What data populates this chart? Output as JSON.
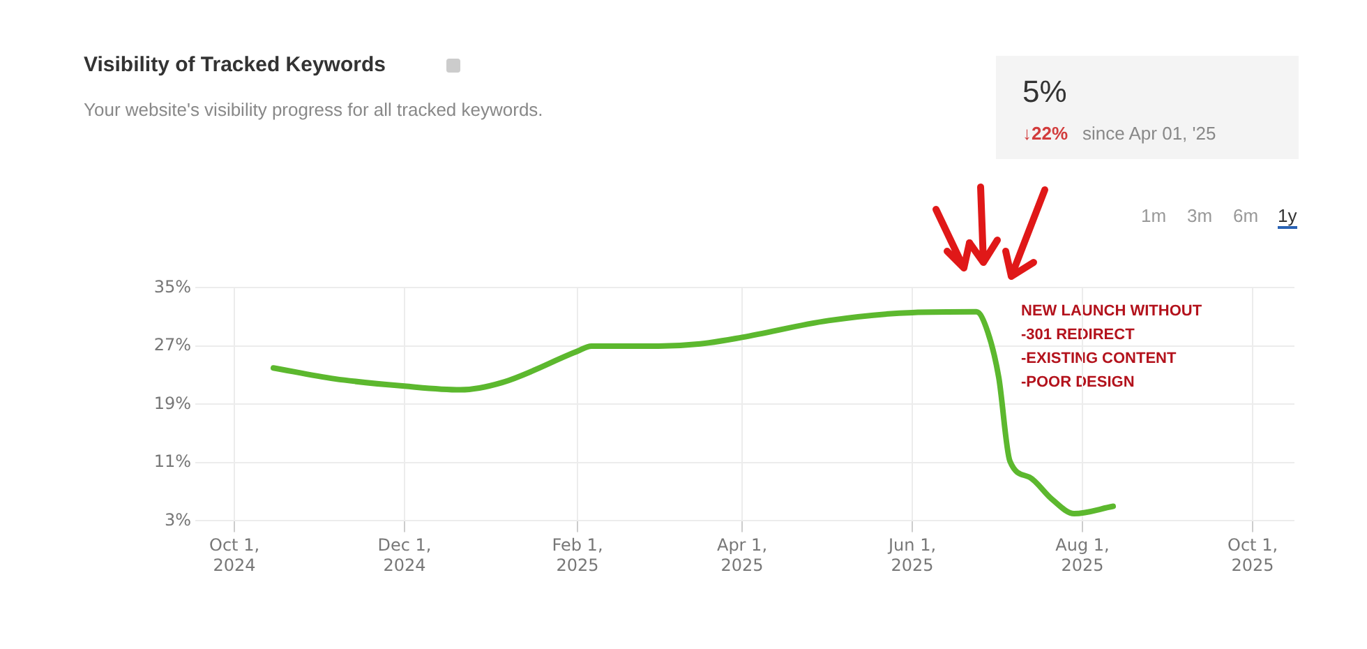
{
  "chart_data": {
    "type": "line",
    "title": "Visibility of Tracked Keywords",
    "subtitle": "Your website's visibility progress for all tracked keywords.",
    "x": [
      "2024-10-15",
      "2024-11-06",
      "2024-12-01",
      "2024-12-21",
      "2025-01-05",
      "2025-02-01",
      "2025-02-06",
      "2025-03-02",
      "2025-03-17",
      "2025-04-01",
      "2025-05-02",
      "2025-06-01",
      "2025-06-24",
      "2025-06-28",
      "2025-07-02",
      "2025-07-06",
      "2025-07-13",
      "2025-07-21",
      "2025-07-29",
      "2025-08-12"
    ],
    "series": [
      {
        "color": "#5cb82e",
        "values": [
          24,
          22.5,
          21.5,
          21,
          22,
          26.3,
          27,
          27,
          27.3,
          28.2,
          30.5,
          31.6,
          31.7,
          29,
          22.7,
          11.2,
          9,
          6,
          4,
          5
        ]
      }
    ],
    "xlim": [
      "2024-09-17",
      "2025-10-16"
    ],
    "xticks": [
      {
        "value": "2024-10-01",
        "label": "Oct 1, 2024"
      },
      {
        "value": "2024-12-01",
        "label": "Dec 1, 2024"
      },
      {
        "value": "2025-02-01",
        "label": "Feb 1, 2025"
      },
      {
        "value": "2025-04-01",
        "label": "Apr 1, 2025"
      },
      {
        "value": "2025-06-01",
        "label": "Jun 1, 2025"
      },
      {
        "value": "2025-08-01",
        "label": "Aug 1, 2025"
      },
      {
        "value": "2025-10-01",
        "label": "Oct 1, 2025"
      }
    ],
    "ylim": [
      3,
      35
    ],
    "yticks": [
      {
        "value": 3,
        "label": "3%"
      },
      {
        "value": 11,
        "label": "11%"
      },
      {
        "value": 19,
        "label": "19%"
      },
      {
        "value": 27,
        "label": "27%"
      },
      {
        "value": 35,
        "label": "35%"
      }
    ],
    "grid": true,
    "legend": false,
    "marker": "none",
    "line_style": "solid",
    "annotations": [
      "5%",
      "↓22%",
      "since Apr 01, '25",
      "1m",
      "3m",
      "6m",
      "1y",
      "NEW LAUNCH WITHOUT\n-301 REDIRECT\n-EXISTING CONTENT\n-POOR DESIGN"
    ]
  }
}
